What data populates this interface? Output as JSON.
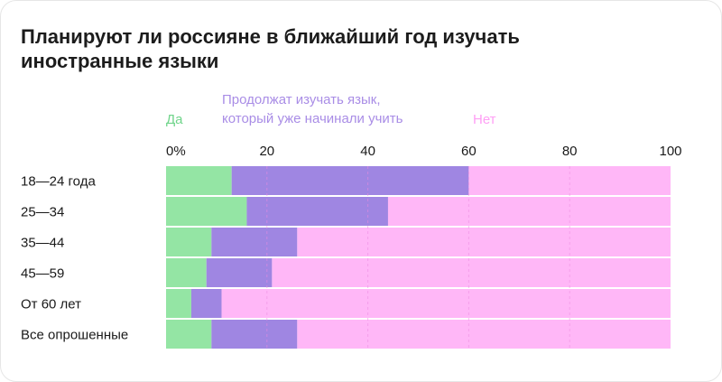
{
  "title": "Планируют ли россияне в ближайший год изучать иностранные языки",
  "legend": [
    {
      "label": "Да",
      "color": "#6fd48a"
    },
    {
      "label": "Продолжат изучать язык, который уже начинали учить",
      "line1": "Продолжат изучать язык,",
      "line2": "который уже начинали учить",
      "color": "#a98de6"
    },
    {
      "label": "Нет",
      "color": "#ff9ff5"
    }
  ],
  "colors": {
    "yes": "#94e5a4",
    "continue": "#9f86e2",
    "no": "#ffb7f7",
    "grid": "#ee8be0"
  },
  "chart_data": {
    "type": "bar",
    "orientation": "horizontal",
    "stacked": true,
    "title": "Планируют ли россияне в ближайший год изучать иностранные языки",
    "categories": [
      "18—24 года",
      "25—34",
      "35—44",
      "45—59",
      "От 60 лет",
      "Все опрошенные"
    ],
    "series": [
      {
        "name": "Да",
        "values": [
          13,
          16,
          9,
          8,
          5,
          9
        ]
      },
      {
        "name": "Продолжат изучать язык, который уже начинали учить",
        "values": [
          47,
          28,
          17,
          13,
          6,
          17
        ]
      },
      {
        "name": "Нет",
        "values": [
          40,
          56,
          74,
          79,
          89,
          74
        ]
      }
    ],
    "xlim": [
      0,
      100
    ],
    "x_ticks": [
      "0%",
      "20",
      "40",
      "60",
      "80",
      "100"
    ],
    "x_tick_values": [
      0,
      20,
      40,
      60,
      80,
      100
    ],
    "grid": true,
    "legend_position": "top"
  }
}
